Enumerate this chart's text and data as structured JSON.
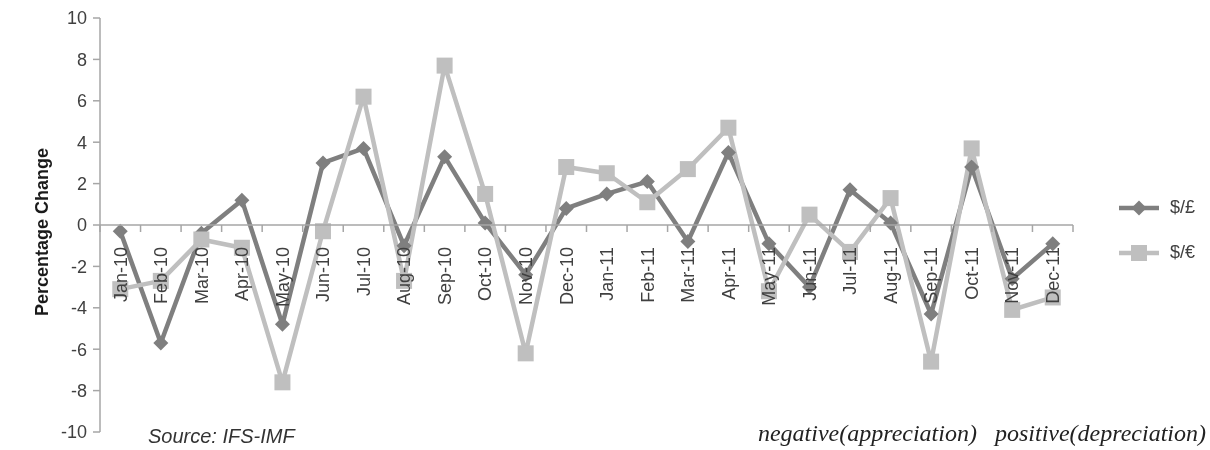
{
  "chart_data": {
    "type": "line",
    "ylabel": "Percentage Change",
    "annotations": [
      "Source: IFS-IMF",
      "negative(appreciation)",
      "positive(depreciation)"
    ],
    "categories": [
      "Jan-10",
      "Feb-10",
      "Mar-10",
      "Apr-10",
      "May-10",
      "Jun-10",
      "Jul-10",
      "Aug-10",
      "Sep-10",
      "Oct-10",
      "Nov-10",
      "Dec-10",
      "Jan-11",
      "Feb-11",
      "Mar-11",
      "Apr-11",
      "May-11",
      "Jun-11",
      "Jul-11",
      "Aug-11",
      "Sep-11",
      "Oct-11",
      "Nov-11",
      "Dec-11"
    ],
    "series": [
      {
        "name": "$/£",
        "color": "#7f7f7f",
        "marker": "diamond",
        "values": [
          -0.3,
          -5.7,
          -0.4,
          1.2,
          -4.8,
          3.0,
          3.7,
          -1.0,
          3.3,
          0.1,
          -2.4,
          0.8,
          1.5,
          2.1,
          -0.8,
          3.5,
          -0.9,
          -3.0,
          1.7,
          0.1,
          -4.3,
          2.8,
          -2.6,
          -0.9
        ]
      },
      {
        "name": "$/€",
        "color": "#bfbfbf",
        "marker": "square",
        "values": [
          -3.1,
          -2.7,
          -0.7,
          -1.1,
          -7.6,
          -0.3,
          6.2,
          -2.7,
          7.7,
          1.5,
          -6.2,
          2.8,
          2.5,
          1.1,
          2.7,
          4.7,
          -3.2,
          0.5,
          -1.3,
          1.3,
          -6.6,
          3.7,
          -4.1,
          -3.5
        ]
      }
    ],
    "ylim": [
      -10,
      10
    ],
    "yticks": [
      -10,
      -8,
      -6,
      -4,
      -2,
      0,
      2,
      4,
      6,
      8,
      10
    ],
    "legend": "right"
  }
}
